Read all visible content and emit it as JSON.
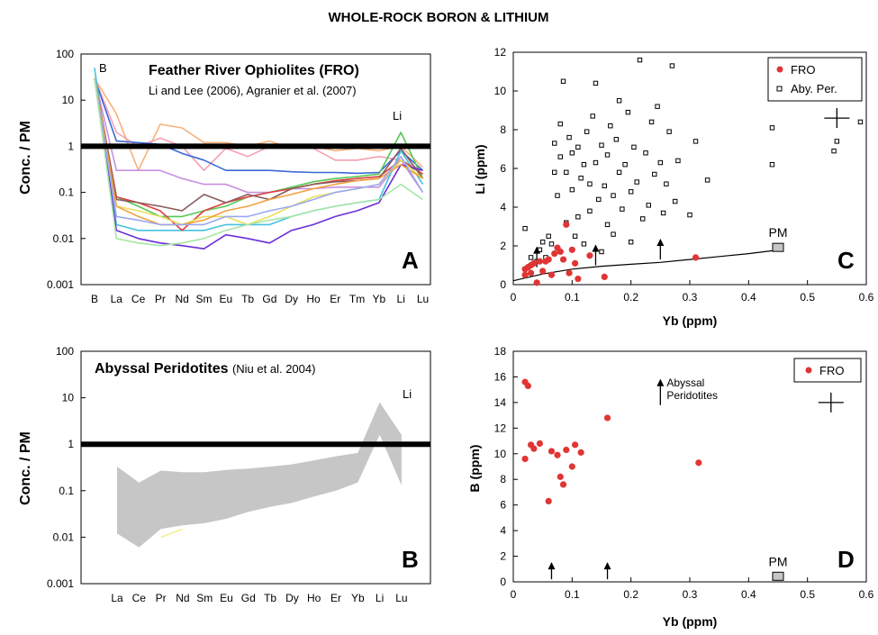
{
  "title": "WHOLE-ROCK BORON & LITHIUM",
  "chart_data": [
    {
      "id": "A",
      "type": "line",
      "panel_label": "A",
      "ylabel": "Conc. / PM",
      "yscale": "log",
      "ylim": [
        0.001,
        100
      ],
      "ytick_labels": [
        "0.001",
        "0.01",
        "0.1",
        "1",
        "10",
        "100"
      ],
      "categories": [
        "B",
        "La",
        "Ce",
        "Pr",
        "Nd",
        "Sm",
        "Eu",
        "Tb",
        "Gd",
        "Dy",
        "Ho",
        "Er",
        "Tm",
        "Yb",
        "Li",
        "Lu"
      ],
      "reference_line": 1,
      "annotations": {
        "title": "Feather River Ophiolites (FRO)",
        "subtitle": "Li and Lee (2006), Agranier et al. (2007)",
        "b_label": "B",
        "li_label": "Li"
      },
      "series": [
        {
          "color": "#f7b27a",
          "values": [
            30,
            5,
            0.3,
            3,
            2.5,
            1.2,
            1.2,
            1,
            1.3,
            0.9,
            1,
            0.8,
            0.9,
            0.8,
            1,
            0.35
          ]
        },
        {
          "color": "#f5a0b0",
          "values": [
            30,
            2,
            1,
            1.5,
            1,
            0.3,
            0.9,
            0.6,
            1,
            1,
            0.9,
            0.5,
            0.5,
            0.6,
            0.5,
            0.3
          ]
        },
        {
          "color": "#3d68d8",
          "values": [
            30,
            1.3,
            1.2,
            1.1,
            0.7,
            0.5,
            0.3,
            0.3,
            0.3,
            0.28,
            0.27,
            0.27,
            0.26,
            0.27,
            0.8,
            0.3
          ]
        },
        {
          "color": "#c98fe0",
          "values": [
            30,
            0.3,
            0.3,
            0.3,
            0.2,
            0.15,
            0.15,
            0.1,
            0.1,
            0.12,
            0.12,
            0.13,
            0.13,
            0.13,
            0.5,
            0.1
          ]
        },
        {
          "color": "#45c2e0",
          "values": [
            50,
            0.02,
            0.015,
            0.015,
            0.015,
            0.015,
            0.02,
            0.02,
            0.02,
            0.03,
            0.04,
            0.05,
            0.06,
            0.07,
            0.8,
            0.15
          ]
        },
        {
          "color": "#55c855",
          "values": [
            30,
            0.08,
            0.05,
            0.03,
            0.03,
            0.04,
            0.05,
            0.08,
            0.1,
            0.13,
            0.17,
            0.2,
            0.22,
            0.25,
            2,
            0.2
          ]
        },
        {
          "color": "#e04040",
          "values": [
            30,
            0.08,
            0.06,
            0.04,
            0.015,
            0.04,
            0.06,
            0.08,
            0.1,
            0.12,
            0.15,
            0.18,
            0.2,
            0.22,
            0.5,
            0.25
          ]
        },
        {
          "color": "#8b5a5a",
          "values": [
            30,
            0.07,
            0.06,
            0.05,
            0.04,
            0.09,
            0.06,
            0.09,
            0.07,
            0.12,
            0.15,
            0.17,
            0.18,
            0.2,
            0.9,
            0.2
          ]
        },
        {
          "color": "#6b2fd8",
          "values": [
            30,
            0.015,
            0.01,
            0.008,
            0.007,
            0.006,
            0.012,
            0.01,
            0.008,
            0.015,
            0.02,
            0.03,
            0.04,
            0.06,
            0.4,
            0.3
          ]
        },
        {
          "color": "#e8e060",
          "values": [
            30,
            0.05,
            0.04,
            0.03,
            0.02,
            0.03,
            0.03,
            0.02,
            0.03,
            0.05,
            0.08,
            0.1,
            0.12,
            0.15,
            0.5,
            0.2
          ]
        },
        {
          "color": "#f2a040",
          "values": [
            30,
            0.05,
            0.03,
            0.02,
            0.02,
            0.025,
            0.04,
            0.05,
            0.07,
            0.09,
            0.12,
            0.15,
            0.18,
            0.2,
            0.4,
            0.2
          ]
        },
        {
          "color": "#99a8f0",
          "values": [
            30,
            0.03,
            0.025,
            0.02,
            0.02,
            0.02,
            0.03,
            0.03,
            0.04,
            0.05,
            0.07,
            0.1,
            0.12,
            0.15,
            0.6,
            0.1
          ]
        },
        {
          "color": "#a6e6a6",
          "values": [
            30,
            0.01,
            0.008,
            0.007,
            0.008,
            0.01,
            0.015,
            0.02,
            0.025,
            0.03,
            0.04,
            0.05,
            0.06,
            0.07,
            0.15,
            0.07
          ]
        }
      ]
    },
    {
      "id": "B",
      "type": "area",
      "panel_label": "B",
      "ylabel": "Conc. / PM",
      "yscale": "log",
      "ylim": [
        0.001,
        100
      ],
      "ytick_labels": [
        "0.001",
        "0.01",
        "0.1",
        "1",
        "10",
        "100"
      ],
      "categories": [
        "La",
        "Ce",
        "Pr",
        "Nd",
        "Sm",
        "Eu",
        "Gd",
        "Tb",
        "Dy",
        "Ho",
        "Er",
        "Yb",
        "Li",
        "Lu"
      ],
      "reference_line": 1,
      "annotations": {
        "title": "Abyssal Peridotites",
        "title_note": "(Niu et al. 2004)",
        "li_label": "Li"
      },
      "band_upper": [
        0.33,
        0.15,
        0.27,
        0.25,
        0.25,
        0.28,
        0.3,
        0.33,
        0.37,
        0.45,
        0.55,
        0.65,
        8,
        1.6
      ],
      "band_lower": [
        0.012,
        0.006,
        0.015,
        0.018,
        0.02,
        0.025,
        0.035,
        0.045,
        0.055,
        0.075,
        0.1,
        0.15,
        1.6,
        0.13
      ],
      "highlight": {
        "color": "#f2ef8a",
        "x": [
          "Pr",
          "Nd"
        ],
        "values": [
          0.01,
          0.015
        ]
      }
    },
    {
      "id": "C",
      "type": "scatter",
      "panel_label": "C",
      "xlabel": "Yb (ppm)",
      "ylabel": "Li (ppm)",
      "xlim": [
        0,
        0.6
      ],
      "ylim": [
        0,
        12
      ],
      "xtick_labels": [
        "0",
        "0.1",
        "0.2",
        "0.3",
        "0.4",
        "0.5",
        "0.6"
      ],
      "ytick_labels": [
        "0",
        "2",
        "4",
        "6",
        "8",
        "10",
        "12"
      ],
      "legend": [
        "FRO",
        "Aby. Per."
      ],
      "series": [
        {
          "name": "FRO",
          "marker": "circle",
          "color": "#e03535",
          "points": [
            [
              0.02,
              0.5
            ],
            [
              0.03,
              0.6
            ],
            [
              0.02,
              0.8
            ],
            [
              0.025,
              0.9
            ],
            [
              0.03,
              1
            ],
            [
              0.04,
              0.1
            ],
            [
              0.035,
              1.1
            ],
            [
              0.045,
              1.2
            ],
            [
              0.05,
              0.7
            ],
            [
              0.055,
              1.2
            ],
            [
              0.06,
              1.3
            ],
            [
              0.065,
              0.5
            ],
            [
              0.07,
              1.6
            ],
            [
              0.075,
              1.9
            ],
            [
              0.08,
              1.7
            ],
            [
              0.085,
              1.3
            ],
            [
              0.09,
              3.1
            ],
            [
              0.095,
              0.6
            ],
            [
              0.1,
              1.8
            ],
            [
              0.105,
              1.1
            ],
            [
              0.11,
              0.3
            ],
            [
              0.13,
              1.5
            ],
            [
              0.155,
              0.4
            ],
            [
              0.31,
              1.4
            ]
          ]
        },
        {
          "name": "Aby. Per.",
          "marker": "square",
          "color": "#000000",
          "points": [
            [
              0.02,
              2.9
            ],
            [
              0.03,
              1.4
            ],
            [
              0.04,
              1.2
            ],
            [
              0.045,
              1.8
            ],
            [
              0.05,
              2.2
            ],
            [
              0.055,
              1.4
            ],
            [
              0.06,
              2.5
            ],
            [
              0.065,
              2.1
            ],
            [
              0.07,
              5.8
            ],
            [
              0.07,
              7.3
            ],
            [
              0.075,
              4.6
            ],
            [
              0.08,
              6.6
            ],
            [
              0.08,
              8.3
            ],
            [
              0.085,
              10.5
            ],
            [
              0.09,
              5.8
            ],
            [
              0.09,
              3.2
            ],
            [
              0.095,
              7.6
            ],
            [
              0.1,
              6.8
            ],
            [
              0.1,
              4.9
            ],
            [
              0.105,
              2.5
            ],
            [
              0.11,
              7.1
            ],
            [
              0.11,
              3.5
            ],
            [
              0.115,
              5.5
            ],
            [
              0.12,
              6.2
            ],
            [
              0.12,
              2.1
            ],
            [
              0.125,
              7.9
            ],
            [
              0.13,
              5.2
            ],
            [
              0.13,
              3.8
            ],
            [
              0.135,
              8.7
            ],
            [
              0.14,
              10.4
            ],
            [
              0.14,
              6.3
            ],
            [
              0.145,
              4.4
            ],
            [
              0.15,
              7.2
            ],
            [
              0.15,
              1.7
            ],
            [
              0.155,
              5.1
            ],
            [
              0.16,
              6.7
            ],
            [
              0.16,
              3.1
            ],
            [
              0.165,
              8.2
            ],
            [
              0.17,
              4.6
            ],
            [
              0.17,
              2.6
            ],
            [
              0.175,
              7.5
            ],
            [
              0.18,
              5.8
            ],
            [
              0.18,
              9.5
            ],
            [
              0.185,
              3.9
            ],
            [
              0.19,
              6.2
            ],
            [
              0.195,
              8.9
            ],
            [
              0.2,
              4.8
            ],
            [
              0.2,
              2.2
            ],
            [
              0.205,
              7.1
            ],
            [
              0.21,
              5.3
            ],
            [
              0.215,
              11.6
            ],
            [
              0.22,
              3.4
            ],
            [
              0.225,
              6.8
            ],
            [
              0.23,
              4.1
            ],
            [
              0.235,
              8.4
            ],
            [
              0.24,
              5.7
            ],
            [
              0.245,
              9.2
            ],
            [
              0.25,
              6.3
            ],
            [
              0.255,
              3.7
            ],
            [
              0.26,
              5.2
            ],
            [
              0.265,
              7.9
            ],
            [
              0.27,
              11.3
            ],
            [
              0.275,
              4.3
            ],
            [
              0.28,
              6.4
            ],
            [
              0.3,
              3.6
            ],
            [
              0.31,
              7.4
            ],
            [
              0.33,
              5.4
            ],
            [
              0.44,
              6.2
            ],
            [
              0.44,
              8.1
            ],
            [
              0.55,
              7.4
            ],
            [
              0.545,
              6.9
            ],
            [
              0.59,
              8.4
            ]
          ]
        }
      ],
      "pm_line": [
        [
          0.0,
          0.2
        ],
        [
          0.05,
          0.55
        ],
        [
          0.1,
          0.8
        ],
        [
          0.15,
          0.95
        ],
        [
          0.2,
          1.05
        ],
        [
          0.25,
          1.15
        ],
        [
          0.3,
          1.3
        ],
        [
          0.35,
          1.45
        ],
        [
          0.4,
          1.6
        ],
        [
          0.44,
          1.75
        ],
        [
          0.45,
          1.8
        ]
      ],
      "pm_box": {
        "label": "PM",
        "x": 0.45,
        "y": 1.9
      },
      "arrows": [
        [
          0.04,
          0.9
        ],
        [
          0.14,
          1.0
        ],
        [
          0.25,
          1.3
        ]
      ],
      "error_cross": {
        "x": 0.55,
        "y": 8.6
      }
    },
    {
      "id": "D",
      "type": "scatter",
      "panel_label": "D",
      "xlabel": "Yb (ppm)",
      "ylabel": "B (ppm)",
      "xlim": [
        0,
        0.6
      ],
      "ylim": [
        0,
        18
      ],
      "xtick_labels": [
        "0",
        "0.1",
        "0.2",
        "0.3",
        "0.4",
        "0.5",
        "0.6"
      ],
      "ytick_labels": [
        "0",
        "2",
        "4",
        "6",
        "8",
        "10",
        "12",
        "14",
        "16",
        "18"
      ],
      "legend": [
        "FRO"
      ],
      "series": [
        {
          "name": "FRO",
          "marker": "circle",
          "color": "#e03535",
          "points": [
            [
              0.02,
              15.6
            ],
            [
              0.025,
              15.3
            ],
            [
              0.02,
              9.6
            ],
            [
              0.03,
              10.7
            ],
            [
              0.035,
              10.4
            ],
            [
              0.045,
              10.8
            ],
            [
              0.06,
              6.3
            ],
            [
              0.065,
              10.2
            ],
            [
              0.075,
              9.9
            ],
            [
              0.08,
              8.2
            ],
            [
              0.085,
              7.6
            ],
            [
              0.09,
              10.3
            ],
            [
              0.1,
              9
            ],
            [
              0.105,
              10.7
            ],
            [
              0.115,
              10.1
            ],
            [
              0.16,
              12.8
            ],
            [
              0.315,
              9.3
            ]
          ]
        }
      ],
      "pm_box": {
        "label": "PM",
        "x": 0.45,
        "y": 0.4
      },
      "arrows": [
        [
          0.065,
          0.2
        ],
        [
          0.16,
          0.2
        ]
      ],
      "abyssal_arrow": {
        "x": 0.25,
        "y": 14.5,
        "label_line1": "Abyssal",
        "label_line2": "Peridotites"
      },
      "error_cross": {
        "x": 0.54,
        "y": 14
      }
    }
  ]
}
